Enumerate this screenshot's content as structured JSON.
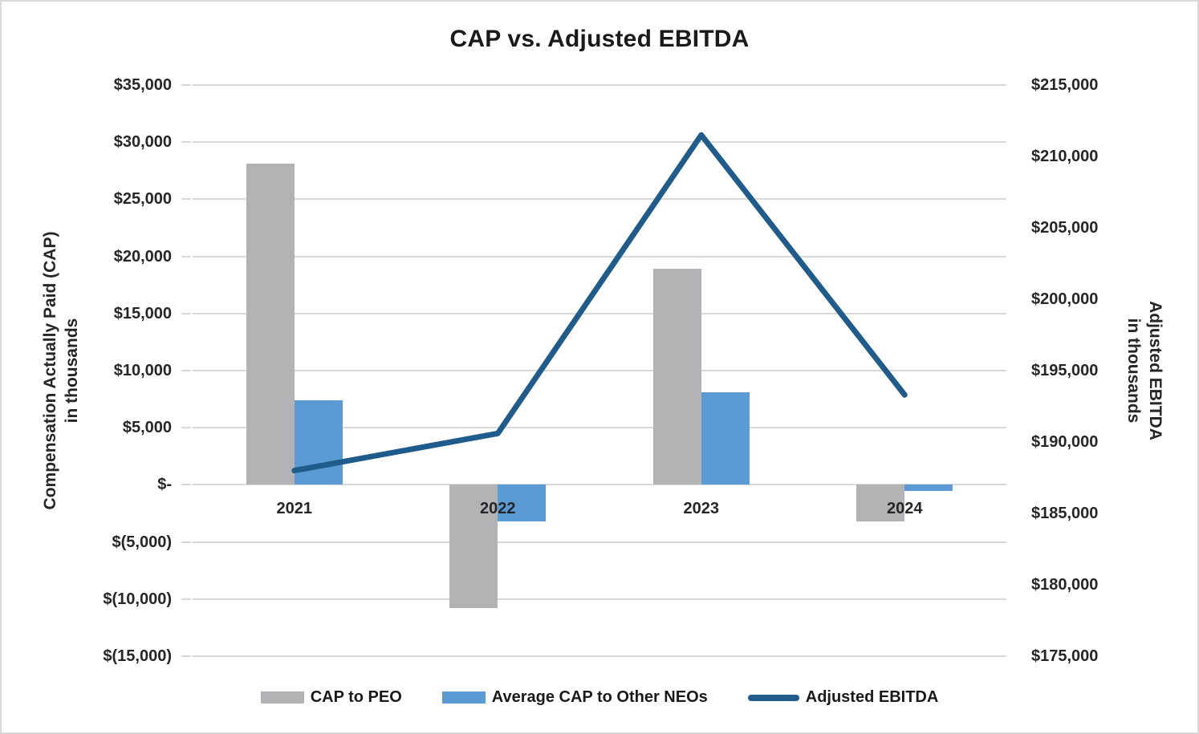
{
  "title": "CAP vs. Adjusted EBITDA",
  "left_axis": {
    "title_line1": "Compensation Actually Paid (CAP)",
    "title_line2": "in thousands",
    "ticks": [
      "$35,000",
      "$30,000",
      "$25,000",
      "$20,000",
      "$15,000",
      "$10,000",
      "$5,000",
      "$-",
      "$(5,000)",
      "$(10,000)",
      "$(15,000)"
    ]
  },
  "right_axis": {
    "title_line1": "Adjusted EBITDA",
    "title_line2": "in thousands",
    "ticks": [
      "$215,000",
      "$210,000",
      "$205,000",
      "$200,000",
      "$195,000",
      "$190,000",
      "$185,000",
      "$180,000",
      "$175,000"
    ]
  },
  "colors": {
    "cap_peo_bar": "#b3b3b6",
    "cap_neo_bar": "#5b9bd5",
    "ebitda_line": "#1f5c8b",
    "gridline": "#d9d9d9",
    "text": "#262626"
  },
  "chart_data": {
    "type": "bar",
    "subtype": "grouped bars with overlaid line, dual y-axes",
    "title": "CAP vs. Adjusted EBITDA",
    "categories": [
      "2021",
      "2022",
      "2023",
      "2024"
    ],
    "series": [
      {
        "name": "CAP to PEO",
        "type": "bar",
        "axis": "left",
        "color": "#b3b3b6",
        "values": [
          28100,
          -10800,
          18900,
          -3200
        ]
      },
      {
        "name": "Average CAP to Other NEOs",
        "type": "bar",
        "axis": "left",
        "color": "#5b9bd5",
        "values": [
          7400,
          -3200,
          8100,
          -500
        ]
      },
      {
        "name": "Adjusted EBITDA",
        "type": "line",
        "axis": "right",
        "color": "#1f5c8b",
        "values": [
          188000,
          190600,
          211500,
          193300
        ]
      }
    ],
    "left_ylabel": "Compensation Actually Paid (CAP) in thousands",
    "right_ylabel": "Adjusted EBITDA in thousands",
    "left_ylim": [
      -15000,
      35000
    ],
    "right_ylim": [
      175000,
      215000
    ],
    "left_tick_step": 5000,
    "right_tick_step": 5000,
    "grid": true,
    "legend_position": "bottom"
  },
  "legend": {
    "items": [
      {
        "label": "CAP to PEO",
        "swatch": "bar",
        "color": "#b3b3b6"
      },
      {
        "label": "Average CAP to Other NEOs",
        "swatch": "bar",
        "color": "#5b9bd5"
      },
      {
        "label": "Adjusted EBITDA",
        "swatch": "line",
        "color": "#1f5c8b"
      }
    ]
  }
}
